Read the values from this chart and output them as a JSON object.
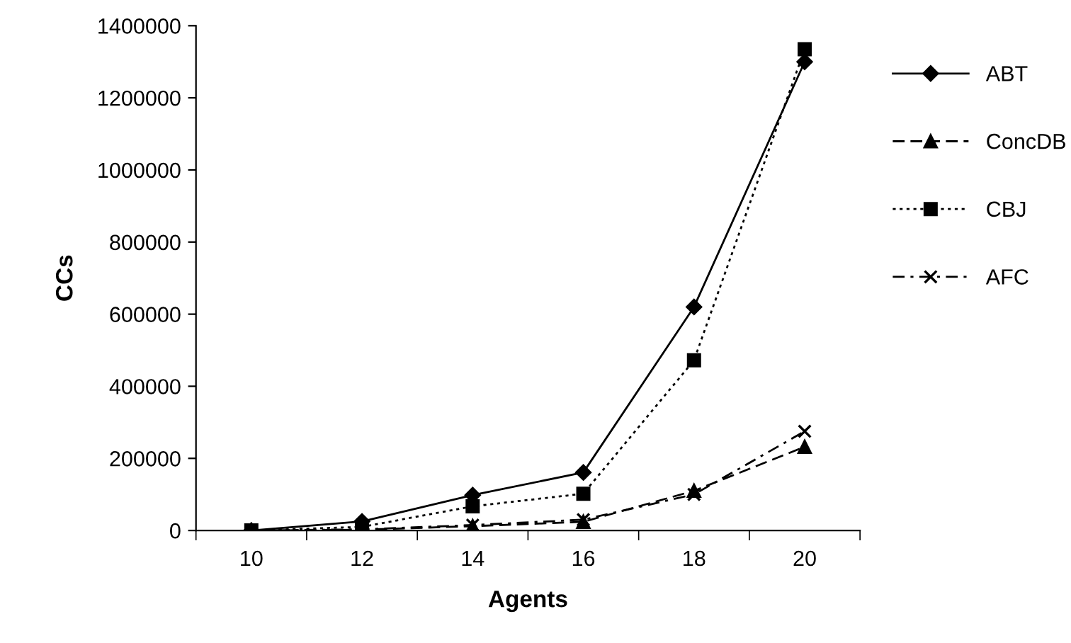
{
  "chart_data": {
    "type": "line",
    "xlabel": "Agents",
    "ylabel": "CCs",
    "categories": [
      "10",
      "12",
      "14",
      "16",
      "18",
      "20"
    ],
    "series": [
      {
        "name": "ABT",
        "color": "#000000",
        "marker": "diamond",
        "line_style": "solid",
        "values": [
          0,
          25000,
          98000,
          161000,
          620000,
          1300000
        ]
      },
      {
        "name": "ConcDB",
        "color": "#000000",
        "marker": "triangle",
        "line_style": "dashed",
        "values": [
          0,
          2000,
          12000,
          24000,
          110000,
          232000
        ]
      },
      {
        "name": "CBJ",
        "color": "#000000",
        "marker": "square",
        "line_style": "dotted",
        "values": [
          0,
          10000,
          67000,
          102000,
          472000,
          1335000
        ]
      },
      {
        "name": "AFC",
        "color": "#000000",
        "marker": "cross",
        "line_style": "dashdot",
        "values": [
          0,
          3000,
          15000,
          30000,
          100000,
          275000
        ]
      }
    ],
    "ylim": [
      0,
      1400000
    ],
    "yticks": [
      0,
      200000,
      400000,
      600000,
      800000,
      1000000,
      1200000,
      1400000
    ],
    "grid": false,
    "legend": "right"
  }
}
